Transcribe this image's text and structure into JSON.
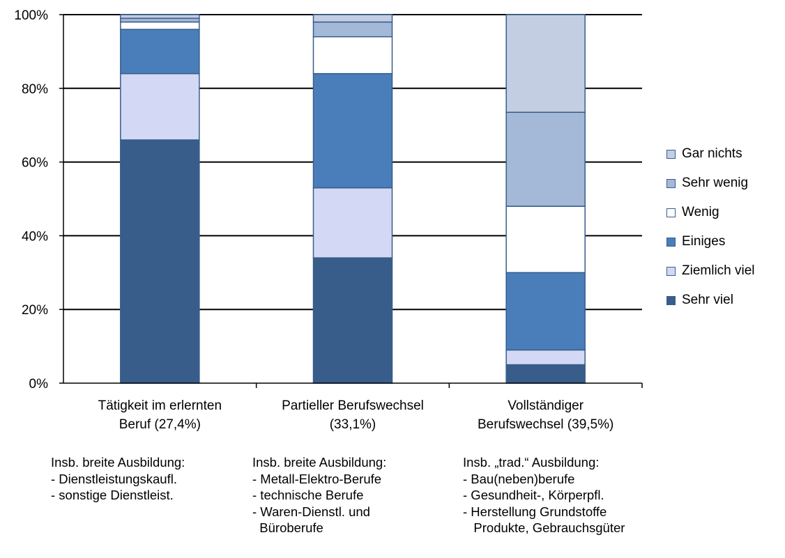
{
  "chart_data": {
    "type": "bar",
    "stacked": true,
    "categories": [
      [
        "Tätigkeit im erlernten",
        "Beruf (27,4%)"
      ],
      [
        "Partieller Berufswechsel",
        "(33,1%)"
      ],
      [
        "Vollständiger",
        "Berufswechsel (39,5%)"
      ]
    ],
    "series": [
      {
        "name": "Sehr viel",
        "color": "#385d8a",
        "values": [
          66,
          34,
          5
        ]
      },
      {
        "name": "Ziemlich viel",
        "color": "#d3d9f4",
        "values": [
          18,
          19,
          4
        ]
      },
      {
        "name": "Einiges",
        "color": "#4a7ebb",
        "values": [
          12,
          31,
          21
        ]
      },
      {
        "name": "Wenig",
        "color": "#ffffff",
        "values": [
          2,
          10,
          18
        ]
      },
      {
        "name": "Sehr wenig",
        "color": "#a4b8d8",
        "values": [
          1,
          4,
          25.5
        ]
      },
      {
        "name": "Gar nichts",
        "color": "#c3cee2",
        "values": [
          1,
          2,
          26.5
        ]
      }
    ],
    "ylim": [
      0,
      100
    ],
    "yticks": [
      "0%",
      "20%",
      "40%",
      "60%",
      "80%",
      "100%"
    ],
    "grid": true,
    "legend_position": "right",
    "legend_order": [
      "Gar nichts",
      "Sehr wenig",
      "Wenig",
      "Einiges",
      "Ziemlich viel",
      "Sehr viel"
    ]
  },
  "notes": [
    {
      "heading": "Insb. breite Ausbildung:",
      "items": [
        "- Dienstleistungskaufl.",
        "- sonstige Dienstleist."
      ]
    },
    {
      "heading": "Insb. breite Ausbildung:",
      "items": [
        "- Metall-Elektro-Berufe",
        "- technische Berufe",
        "- Waren-Dienstl. und",
        "  Büroberufe"
      ]
    },
    {
      "heading": "Insb. „trad.“ Ausbildung:",
      "items": [
        "- Bau(neben)berufe",
        "- Gesundheit-, Körperpfl.",
        "- Herstellung Grundstoffe",
        "   Produkte, Gebrauchsgüter"
      ]
    }
  ]
}
